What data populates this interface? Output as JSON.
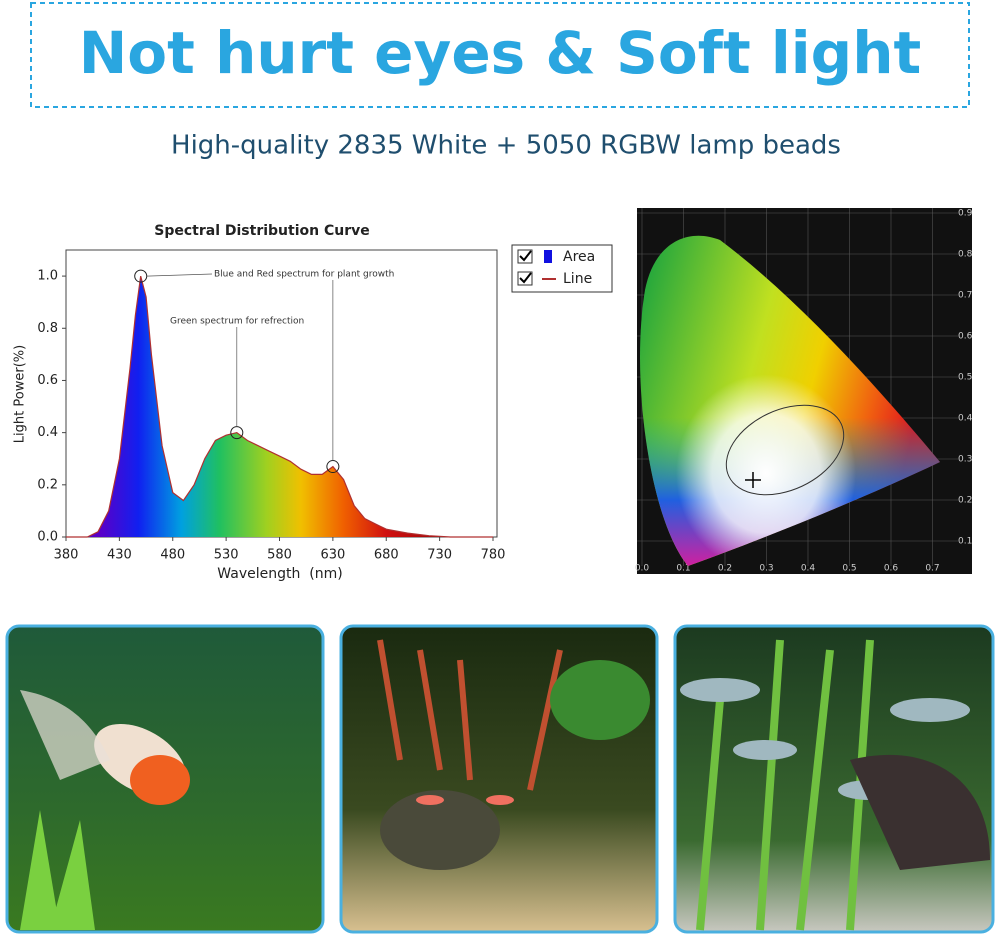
{
  "header": {
    "title": "Not hurt eyes & Soft light",
    "subtitle": "High-quality 2835 White + 5050 RGBW lamp beads"
  },
  "chart_data": {
    "type": "area",
    "title": "Spectral Distribution Curve",
    "x_label": "Wavelength  (nm)",
    "y_label": "Light Power(%)",
    "x": [
      380,
      400,
      410,
      420,
      430,
      440,
      445,
      450,
      455,
      460,
      470,
      480,
      490,
      500,
      510,
      520,
      530,
      540,
      550,
      560,
      570,
      580,
      590,
      600,
      610,
      620,
      630,
      640,
      650,
      660,
      670,
      680,
      700,
      720,
      740,
      780
    ],
    "series": [
      {
        "name": "Line",
        "color": "#b03030",
        "values": [
          0,
          0,
          0.02,
          0.1,
          0.3,
          0.65,
          0.85,
          1.0,
          0.92,
          0.7,
          0.35,
          0.17,
          0.14,
          0.2,
          0.3,
          0.37,
          0.39,
          0.4,
          0.37,
          0.35,
          0.33,
          0.31,
          0.29,
          0.26,
          0.24,
          0.24,
          0.27,
          0.22,
          0.12,
          0.07,
          0.05,
          0.03,
          0.015,
          0.005,
          0,
          0
        ]
      }
    ],
    "area_name": "Area",
    "area_color": "#1010e0",
    "xlim": [
      380,
      780
    ],
    "ylim": [
      0,
      1.1
    ],
    "xticks": [
      380,
      430,
      480,
      530,
      580,
      630,
      680,
      730,
      780
    ],
    "yticks": [
      {
        "value": 0,
        "label": "0.0"
      },
      0.2,
      0.4,
      0.6,
      0.8,
      {
        "value": 1,
        "label": "1.0"
      }
    ],
    "annotations": [
      {
        "text": "Blue and Red spectrum for plant growth",
        "points": [
          7,
          26
        ]
      },
      {
        "text": "Green spectrum for refrection",
        "points": [
          17
        ]
      }
    ]
  },
  "cie": {
    "right_labels": [
      "0.9",
      "0.8",
      "0.7",
      "0.6",
      "0.5",
      "0.4",
      "0.3",
      "0.2",
      "0.1"
    ],
    "bottom_labels": [
      "0.0",
      "0.1",
      "0.2",
      "0.3",
      "0.4",
      "0.5",
      "0.6",
      "0.7"
    ]
  }
}
